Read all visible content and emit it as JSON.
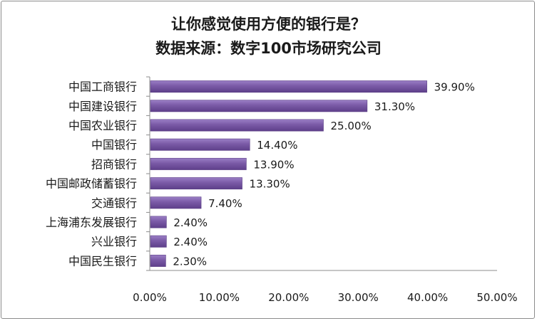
{
  "chart_data": {
    "type": "bar",
    "orientation": "horizontal",
    "title": "让你感觉使用方便的银行是？",
    "subtitle": "数据来源：数字100市场研究公司",
    "categories": [
      "中国工商银行",
      "中国建设银行",
      "中国农业银行",
      "中国银行",
      "招商银行",
      "中国邮政储蓄银行",
      "交通银行",
      "上海浦东发展银行",
      "兴业银行",
      "中国民生银行"
    ],
    "values": [
      39.9,
      31.3,
      25.0,
      14.4,
      13.9,
      13.3,
      7.4,
      2.4,
      2.4,
      2.3
    ],
    "value_labels": [
      "39.90%",
      "31.30%",
      "25.00%",
      "14.40%",
      "13.90%",
      "13.30%",
      "7.40%",
      "2.40%",
      "2.40%",
      "2.30%"
    ],
    "xlim": [
      0,
      50
    ],
    "xticks": [
      0,
      10,
      20,
      30,
      40,
      50
    ],
    "xtick_labels": [
      "0.00%",
      "10.00%",
      "20.00%",
      "30.00%",
      "40.00%",
      "50.00%"
    ],
    "grid": false,
    "legend": "none",
    "bar_color": "#7a5aa6"
  }
}
